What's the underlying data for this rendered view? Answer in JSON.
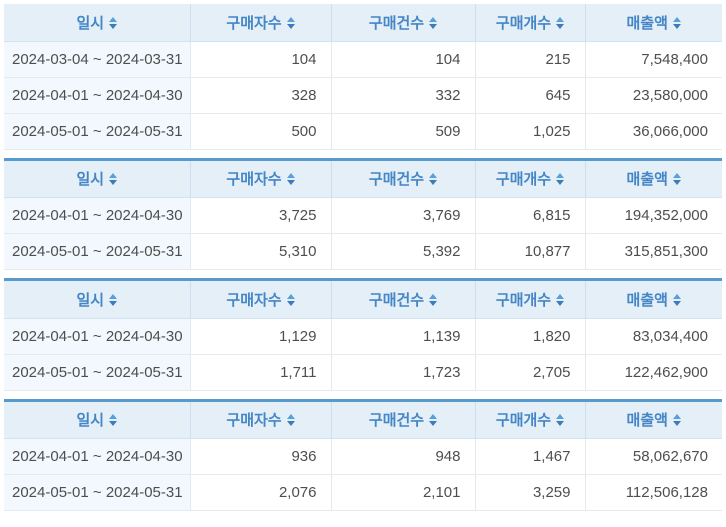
{
  "table_headers": {
    "date": "일시",
    "buyers": "구매자수",
    "orders": "구매건수",
    "quantity": "구매개수",
    "revenue": "매출액"
  },
  "icons": {
    "sort": "sort-arrows-icon"
  },
  "colors": {
    "header_bg": "#e4eff8",
    "header_text": "#4486c6",
    "table_top_line": "#579bce",
    "date_cell_bg": "#f2f8fd",
    "cell_text": "#4e4e4e",
    "sort_arrow_up": "#599fd9",
    "sort_arrow_down": "#3d7cba"
  },
  "tables": [
    {
      "rows": [
        {
          "date": "2024-03-04 ~ 2024-03-31",
          "buyers": "104",
          "orders": "104",
          "quantity": "215",
          "revenue": "7,548,400"
        },
        {
          "date": "2024-04-01 ~ 2024-04-30",
          "buyers": "328",
          "orders": "332",
          "quantity": "645",
          "revenue": "23,580,000"
        },
        {
          "date": "2024-05-01 ~ 2024-05-31",
          "buyers": "500",
          "orders": "509",
          "quantity": "1,025",
          "revenue": "36,066,000"
        }
      ]
    },
    {
      "rows": [
        {
          "date": "2024-04-01 ~ 2024-04-30",
          "buyers": "3,725",
          "orders": "3,769",
          "quantity": "6,815",
          "revenue": "194,352,000"
        },
        {
          "date": "2024-05-01 ~ 2024-05-31",
          "buyers": "5,310",
          "orders": "5,392",
          "quantity": "10,877",
          "revenue": "315,851,300"
        }
      ]
    },
    {
      "rows": [
        {
          "date": "2024-04-01 ~ 2024-04-30",
          "buyers": "1,129",
          "orders": "1,139",
          "quantity": "1,820",
          "revenue": "83,034,400"
        },
        {
          "date": "2024-05-01 ~ 2024-05-31",
          "buyers": "1,711",
          "orders": "1,723",
          "quantity": "2,705",
          "revenue": "122,462,900"
        }
      ]
    },
    {
      "rows": [
        {
          "date": "2024-04-01 ~ 2024-04-30",
          "buyers": "936",
          "orders": "948",
          "quantity": "1,467",
          "revenue": "58,062,670"
        },
        {
          "date": "2024-05-01 ~ 2024-05-31",
          "buyers": "2,076",
          "orders": "2,101",
          "quantity": "3,259",
          "revenue": "112,506,128"
        }
      ]
    }
  ]
}
